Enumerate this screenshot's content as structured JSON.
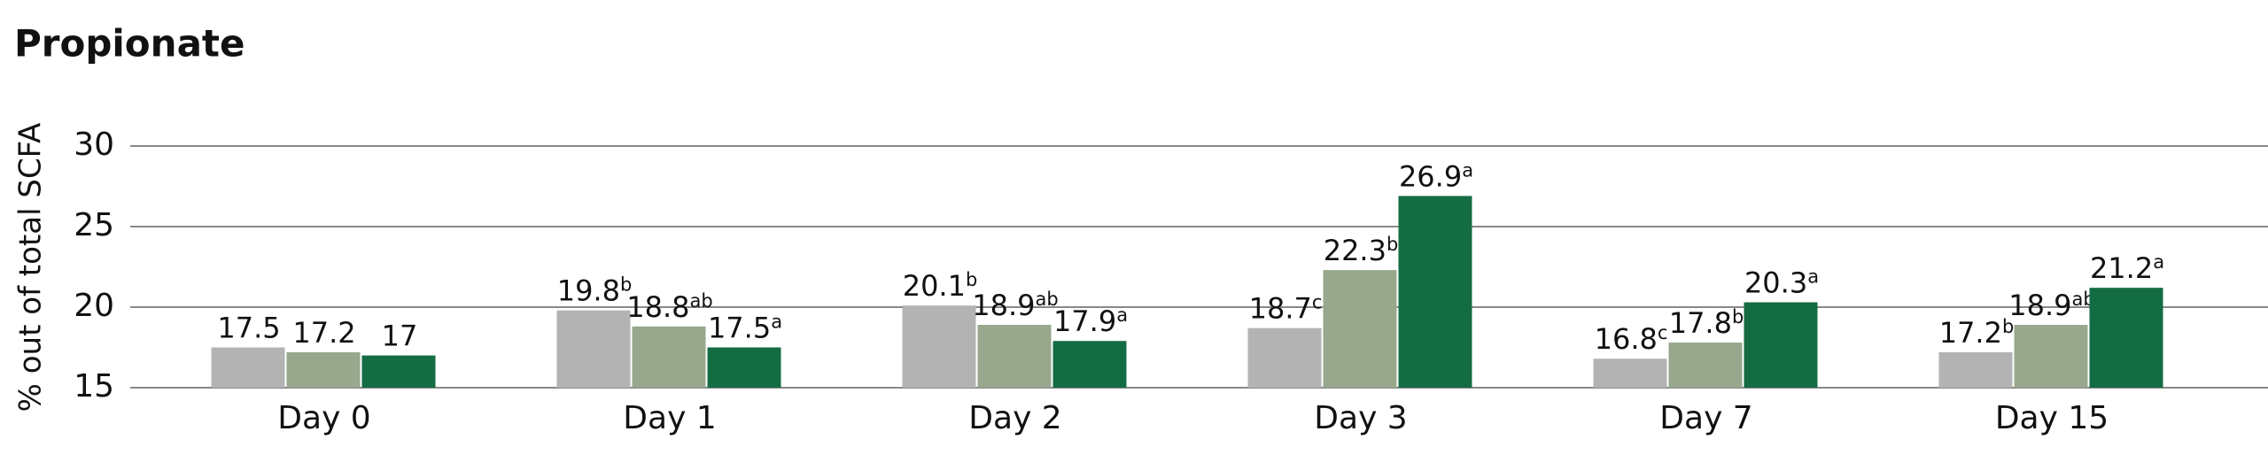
{
  "chart_data": {
    "type": "bar",
    "title": "Propionate",
    "ylabel": "% out of total SCFA",
    "categories": [
      "Day 0",
      "Day 1",
      "Day 2",
      "Day 3",
      "Day 7",
      "Day 15"
    ],
    "series": [
      {
        "color": "#b3b3b3",
        "values": [
          17.5,
          19.8,
          20.1,
          18.7,
          16.8,
          17.2
        ],
        "letters": [
          null,
          "b",
          "b",
          "c",
          "c",
          "b"
        ]
      },
      {
        "color": "#97a88d",
        "values": [
          17.2,
          18.8,
          18.9,
          22.3,
          17.8,
          18.9
        ],
        "letters": [
          null,
          "ab",
          "ab",
          "b",
          "b",
          "ab"
        ]
      },
      {
        "color": "#146c43",
        "values": [
          17,
          17.5,
          17.9,
          26.9,
          20.3,
          21.2
        ],
        "letters": [
          null,
          "a",
          "a",
          "a",
          "a",
          "a"
        ]
      }
    ],
    "ylim": [
      15,
      30
    ],
    "yticks": [
      15,
      20,
      25,
      30
    ],
    "grid": true
  }
}
